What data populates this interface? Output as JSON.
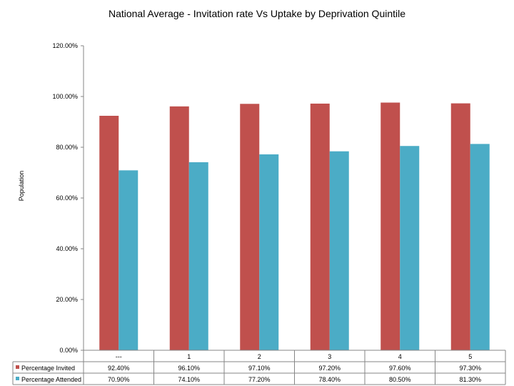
{
  "chart_data": {
    "type": "bar",
    "title": "National Average - Invitation rate Vs Uptake by Deprivation Quintile",
    "xlabel": "",
    "ylabel": "Population",
    "ylim": [
      0,
      120
    ],
    "yticks": [
      "0.00%",
      "20.00%",
      "40.00%",
      "60.00%",
      "80.00%",
      "100.00%",
      "120.00%"
    ],
    "categories": [
      "---",
      "1",
      "2",
      "3",
      "4",
      "5"
    ],
    "series": [
      {
        "name": "Percentage Invited",
        "values": [
          92.4,
          96.1,
          97.1,
          97.2,
          97.6,
          97.3
        ],
        "labels": [
          "92.40%",
          "96.10%",
          "97.10%",
          "97.20%",
          "97.60%",
          "97.30%"
        ],
        "color": "#c0504d"
      },
      {
        "name": "Percentage Attended",
        "values": [
          70.9,
          74.1,
          77.2,
          78.4,
          80.5,
          81.3
        ],
        "labels": [
          "70.90%",
          "74.10%",
          "77.20%",
          "78.40%",
          "80.50%",
          "81.30%"
        ],
        "color": "#4bacc6"
      }
    ],
    "grid": false,
    "legend": "data-table-left"
  }
}
